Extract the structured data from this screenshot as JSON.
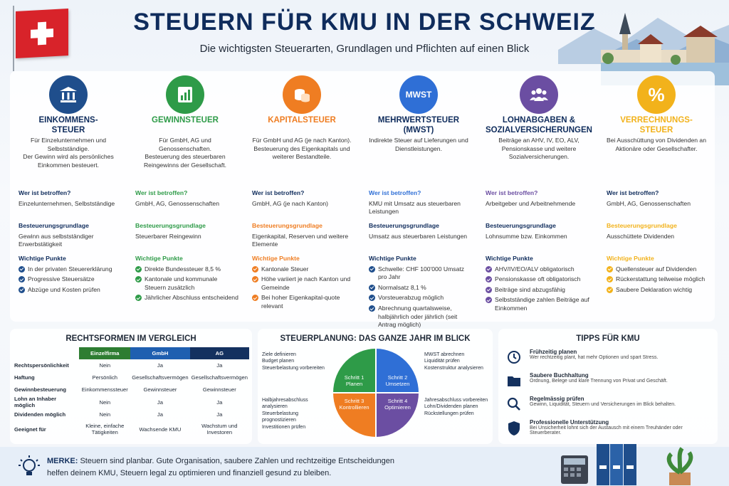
{
  "header": {
    "title": "STEUERN FÜR KMU IN DER SCHWEIZ",
    "subtitle": "Die wichtigsten Steuerarten, Grundlagen und Pflichten auf einen Blick"
  },
  "colors": {
    "blue": "#1f4e8c",
    "green": "#2e9b48",
    "orange": "#ef7d22",
    "mwst": "#2f6fd6",
    "purple": "#6b4ea2",
    "yellow": "#f2b21b",
    "navy": "#0f2c5c"
  },
  "columns": [
    {
      "icon": "bank-icon",
      "color": "#1f4e8c",
      "title": "EINKOMMENS-\nSTEUER",
      "desc": "Für Einzelunternehmen und Selbstständige.\nDer Gewinn wird als persönliches Einkommen besteuert.",
      "who_label": "Wer ist betroffen?",
      "who": "Einzelunternehmen, Selbstständige",
      "base_label": "Besteuerungsgrundlage",
      "base": "Gewinn aus selbstständiger Erwerbstätigkeit",
      "points_label": "Wichtige Punkte",
      "points": [
        "In der privaten Steuererklärung",
        "Progressive Steuersätze",
        "Abzüge und Kosten prüfen"
      ]
    },
    {
      "icon": "bar-chart-icon",
      "color": "#2e9b48",
      "title": "GEWINNSTEUER",
      "desc": "Für GmbH, AG und Genossenschaften.\nBesteuerung des steuerbaren Reingewinns der Gesellschaft.",
      "who_label": "Wer ist betroffen?",
      "who": "GmbH, AG, Genossenschaften",
      "base_label": "Besteuerungsgrundlage",
      "base": "Steuerbarer Reingewinn",
      "points_label": "Wichtige Punkte",
      "points": [
        "Direkte Bundessteuer 8,5 %",
        "Kantonale und kommunale Steuern zusätzlich",
        "Jährlicher Abschluss entscheidend"
      ]
    },
    {
      "icon": "coins-icon",
      "color": "#ef7d22",
      "title": "KAPITALSTEUER",
      "desc": "Für GmbH und AG (je nach Kanton).\nBesteuerung des Eigenkapitals und weiterer Bestandteile.",
      "who_label": "Wer ist betroffen?",
      "who": "GmbH, AG (je nach Kanton)",
      "base_label": "Besteuerungsgrundlage",
      "base": "Eigenkapital, Reserven und weitere Elemente",
      "points_label": "Wichtige Punkte",
      "points": [
        "Kantonale Steuer",
        "Höhe variiert je nach Kanton und Gemeinde",
        "Bei hoher Eigenkapital-quote relevant"
      ]
    },
    {
      "icon": "mwst-icon",
      "icon_text": "MWST",
      "color": "#2f6fd6",
      "title": "MEHRWERTSTEUER\n(MWST)",
      "desc": "Indirekte Steuer auf Lieferungen und Dienstleistungen.",
      "who_label": "Wer ist betroffen?",
      "who": "KMU mit Umsatz aus steuerbaren Leistungen",
      "base_label": "Besteuerungsgrundlage",
      "base": "Umsatz aus steuerbaren Leistungen",
      "points_label": "Wichtige Punkte",
      "points": [
        "Schwelle: CHF 100'000 Umsatz pro Jahr",
        "Normalsatz 8,1 %",
        "Vorsteuerabzug möglich",
        "Abrechnung quartalsweise, halbjährlich oder jährlich (seit Antrag möglich)"
      ]
    },
    {
      "icon": "people-icon",
      "color": "#6b4ea2",
      "title": "LOHNABGABEN &\nSOZIALVERSICHERUNGEN",
      "desc": "Beiträge an AHV, IV, EO, ALV, Pensionskasse und weitere Sozialversicherungen.",
      "who_label": "Wer ist betroffen?",
      "who": "Arbeitgeber und Arbeitnehmende",
      "base_label": "Besteuerungsgrundlage",
      "base": "Lohnsumme bzw. Einkommen",
      "points_label": "Wichtige Punkte",
      "points": [
        "AHV/IV/EO/ALV obligatorisch",
        "Pensionskasse oft obligatorisch",
        "Beiträge sind abzugsfähig",
        "Selbstständige zahlen Beiträge auf Einkommen"
      ]
    },
    {
      "icon": "percent-icon",
      "color": "#f2b21b",
      "title": "VERRECHNUNGS-\nSTEUER",
      "desc": "Bei Ausschüttung von Dividenden an Aktionäre oder Gesellschafter.",
      "who_label": "Wer ist betroffen?",
      "who": "GmbH, AG, Genossenschaften",
      "base_label": "Besteuerungsgrundlage",
      "base": "Ausschüttete Dividenden",
      "points_label": "Wichtige Punkte",
      "points": [
        "Quellensteuer auf Dividenden",
        "Rückerstattung teilweise möglich",
        "Saubere Deklaration wichtig"
      ]
    }
  ],
  "compare": {
    "title": "RECHTSFORMEN IM VERGLEICH",
    "headers": [
      "Einzelfirma",
      "GmbH",
      "AG"
    ],
    "rows": [
      {
        "label": "Rechtspersönlichkeit",
        "values": [
          "Nein",
          "Ja",
          "Ja"
        ]
      },
      {
        "label": "Haftung",
        "values": [
          "Persönlich",
          "Gesellschaftsvermögen",
          "Gesellschaftsvermögen"
        ]
      },
      {
        "label": "Gewinnbesteuerung",
        "values": [
          "Einkommenssteuer",
          "Gewinnsteuer",
          "Gewinnsteuer"
        ]
      },
      {
        "label": "Lohn an Inhaber möglich",
        "values": [
          "Nein",
          "Ja",
          "Ja"
        ]
      },
      {
        "label": "Dividenden möglich",
        "values": [
          "Nein",
          "Ja",
          "Ja"
        ]
      },
      {
        "label": "Geeignet für",
        "values": [
          "Kleine, einfache Tätigkeiten",
          "Wachsende KMU",
          "Wachstum und Investoren"
        ]
      }
    ]
  },
  "planning": {
    "title": "STEUERPLANUNG: DAS GANZE JAHR IM BLICK",
    "steps": [
      {
        "label": "Schritt 1\nPlanen",
        "color": "#2e9b48"
      },
      {
        "label": "Schritt 2\nUmsetzen",
        "color": "#2f6fd6"
      },
      {
        "label": "Schritt 3\nKontrollieren",
        "color": "#ef7d22"
      },
      {
        "label": "Schritt 4\nOptimieren",
        "color": "#6b4ea2"
      }
    ],
    "tl": [
      "Ziele definieren",
      "Budget planen",
      "Steuerbelastung vorbereiten"
    ],
    "tr": [
      "MWST abrechnen",
      "Liquidität prüfen",
      "Kostenstruktur analysieren"
    ],
    "bl": [
      "Halbjahresabschluss analysieren",
      "Steuerbelastung prognostizieren",
      "Investitionen prüfen"
    ],
    "br": [
      "Jahresabschluss vorbereiten",
      "Lohn/Dividenden planen",
      "Rückstellungen prüfen"
    ]
  },
  "tips": {
    "title": "TIPPS FÜR KMU",
    "items": [
      {
        "icon": "clock-icon",
        "title": "Frühzeitig planen",
        "text": "Wer rechtzeitig plant, hat mehr Optionen und spart Stress."
      },
      {
        "icon": "folder-icon",
        "title": "Saubere Buchhaltung",
        "text": "Ordnung, Belege und klare Trennung von Privat und Geschäft."
      },
      {
        "icon": "magnifier-icon",
        "title": "Regelmässig prüfen",
        "text": "Gewinn, Liquidität, Steuern und Versicherungen im Blick behalten."
      },
      {
        "icon": "shield-icon",
        "title": "Professionelle Unterstützung",
        "text": "Bei Unsicherheit lohnt sich der Austausch mit einem Treuhänder oder Steuerberater."
      }
    ]
  },
  "merke": {
    "label": "MERKE:",
    "text": "Steuern sind planbar. Gute Organisation, saubere Zahlen und rechtzeitige Entscheidungen helfen deinem KMU, Steuern legal zu optimieren und finanziell gesund zu bleiben."
  }
}
